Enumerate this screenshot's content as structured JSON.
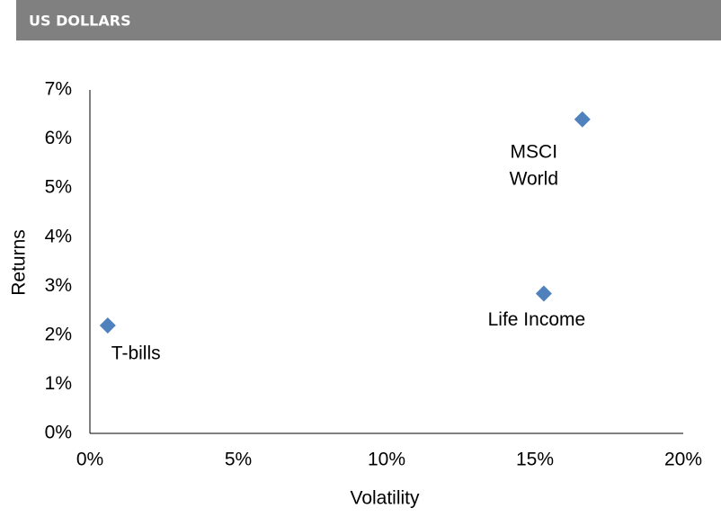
{
  "header": {
    "title": "US DOLLARS"
  },
  "chart_data": {
    "type": "scatter",
    "x_label": "Volatility",
    "y_label": "Returns",
    "color": "#4f81bd",
    "x": [
      0.6,
      15.3,
      16.6
    ],
    "values": [
      2.2,
      2.85,
      6.4
    ],
    "point_labels": [
      [
        "T-bills"
      ],
      [
        "Life Income"
      ],
      [
        "MSCI",
        "World"
      ]
    ],
    "xlim": [
      0,
      20
    ],
    "xticks": [
      {
        "value": 0,
        "label": "0%"
      },
      {
        "value": 5,
        "label": "5%"
      },
      {
        "value": 10,
        "label": "10%"
      },
      {
        "value": 15,
        "label": "15%"
      },
      {
        "value": 20,
        "label": "20%"
      }
    ],
    "ylim": [
      0,
      7
    ],
    "yticks": [
      {
        "value": 0,
        "label": "0%"
      },
      {
        "value": 1,
        "label": "1%"
      },
      {
        "value": 2,
        "label": "2%"
      },
      {
        "value": 3,
        "label": "3%"
      },
      {
        "value": 4,
        "label": "4%"
      },
      {
        "value": 5,
        "label": "5%"
      },
      {
        "value": 6,
        "label": "6%"
      },
      {
        "value": 7,
        "label": "7%"
      }
    ],
    "grid": false
  }
}
